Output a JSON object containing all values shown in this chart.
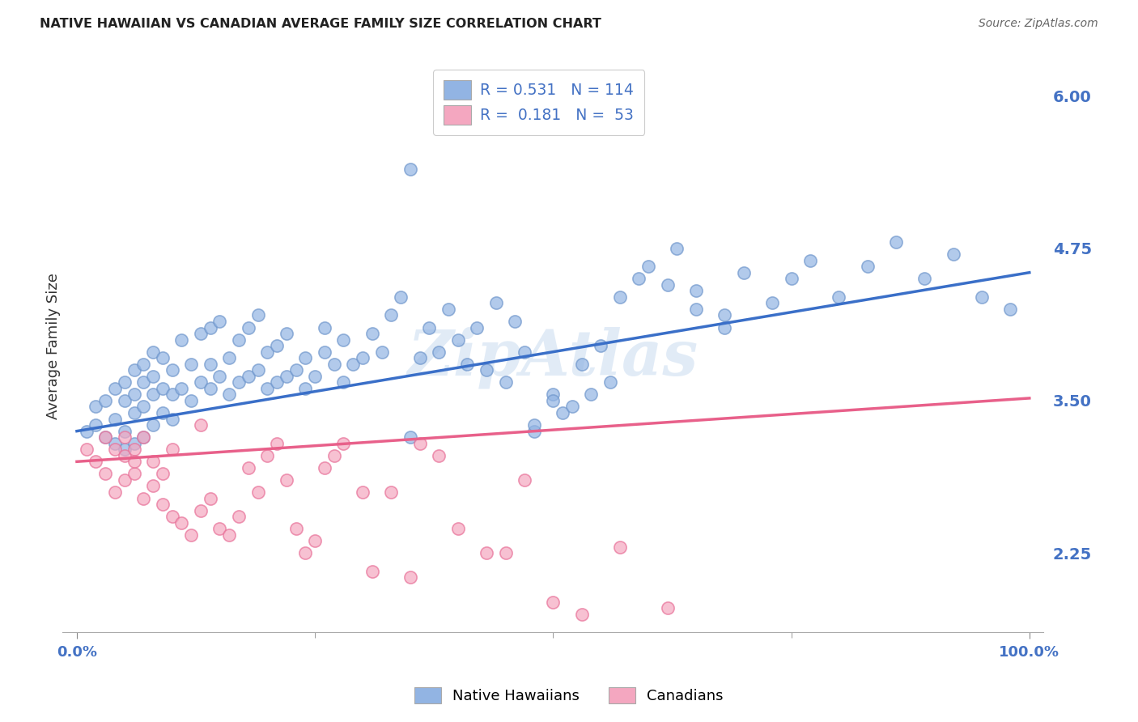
{
  "title": "NATIVE HAWAIIAN VS CANADIAN AVERAGE FAMILY SIZE CORRELATION CHART",
  "source": "Source: ZipAtlas.com",
  "ylabel": "Average Family Size",
  "xmin": 0.0,
  "xmax": 1.0,
  "ymin": 1.6,
  "ymax": 6.3,
  "yticks": [
    2.25,
    3.5,
    4.75,
    6.0
  ],
  "ytick_labels": [
    "2.25",
    "3.50",
    "4.75",
    "6.00"
  ],
  "xtick_labels": [
    "0.0%",
    "100.0%"
  ],
  "watermark": "ZipAtlas",
  "blue_color": "#92b4e3",
  "pink_color": "#f4a7c0",
  "blue_edge_color": "#7097cc",
  "pink_edge_color": "#e87098",
  "blue_line_color": "#3a6fc8",
  "pink_line_color": "#e8608a",
  "title_color": "#222222",
  "source_color": "#666666",
  "axis_tick_color": "#4472C4",
  "grid_color": "#d8d8d8",
  "legend_r_color": "#4472C4",
  "legend_n_color": "#4472C4",
  "blue_scatter_x": [
    0.01,
    0.02,
    0.02,
    0.03,
    0.03,
    0.04,
    0.04,
    0.04,
    0.05,
    0.05,
    0.05,
    0.05,
    0.06,
    0.06,
    0.06,
    0.06,
    0.07,
    0.07,
    0.07,
    0.07,
    0.08,
    0.08,
    0.08,
    0.08,
    0.09,
    0.09,
    0.09,
    0.1,
    0.1,
    0.1,
    0.11,
    0.11,
    0.12,
    0.12,
    0.13,
    0.13,
    0.14,
    0.14,
    0.14,
    0.15,
    0.15,
    0.16,
    0.16,
    0.17,
    0.17,
    0.18,
    0.18,
    0.19,
    0.19,
    0.2,
    0.2,
    0.21,
    0.21,
    0.22,
    0.22,
    0.23,
    0.24,
    0.24,
    0.25,
    0.26,
    0.26,
    0.27,
    0.28,
    0.28,
    0.29,
    0.3,
    0.31,
    0.32,
    0.33,
    0.34,
    0.35,
    0.36,
    0.37,
    0.38,
    0.39,
    0.4,
    0.41,
    0.42,
    0.43,
    0.44,
    0.45,
    0.46,
    0.47,
    0.48,
    0.5,
    0.51,
    0.53,
    0.55,
    0.57,
    0.59,
    0.62,
    0.65,
    0.68,
    0.7,
    0.73,
    0.75,
    0.77,
    0.8,
    0.83,
    0.86,
    0.89,
    0.92,
    0.95,
    0.98,
    0.35,
    0.48,
    0.5,
    0.52,
    0.54,
    0.56,
    0.6,
    0.63,
    0.65,
    0.68
  ],
  "blue_scatter_y": [
    3.25,
    3.3,
    3.45,
    3.2,
    3.5,
    3.15,
    3.35,
    3.6,
    3.1,
    3.25,
    3.5,
    3.65,
    3.15,
    3.4,
    3.55,
    3.75,
    3.2,
    3.45,
    3.65,
    3.8,
    3.3,
    3.55,
    3.7,
    3.9,
    3.4,
    3.6,
    3.85,
    3.35,
    3.55,
    3.75,
    3.6,
    4.0,
    3.5,
    3.8,
    3.65,
    4.05,
    3.6,
    3.8,
    4.1,
    3.7,
    4.15,
    3.55,
    3.85,
    3.65,
    4.0,
    3.7,
    4.1,
    3.75,
    4.2,
    3.6,
    3.9,
    3.65,
    3.95,
    3.7,
    4.05,
    3.75,
    3.6,
    3.85,
    3.7,
    3.9,
    4.1,
    3.8,
    3.65,
    4.0,
    3.8,
    3.85,
    4.05,
    3.9,
    4.2,
    4.35,
    5.4,
    3.85,
    4.1,
    3.9,
    4.25,
    4.0,
    3.8,
    4.1,
    3.75,
    4.3,
    3.65,
    4.15,
    3.9,
    3.25,
    3.55,
    3.4,
    3.8,
    3.95,
    4.35,
    4.5,
    4.45,
    4.25,
    4.1,
    4.55,
    4.3,
    4.5,
    4.65,
    4.35,
    4.6,
    4.8,
    4.5,
    4.7,
    4.35,
    4.25,
    3.2,
    3.3,
    3.5,
    3.45,
    3.55,
    3.65,
    4.6,
    4.75,
    4.4,
    4.2
  ],
  "pink_scatter_x": [
    0.01,
    0.02,
    0.03,
    0.03,
    0.04,
    0.04,
    0.05,
    0.05,
    0.05,
    0.06,
    0.06,
    0.06,
    0.07,
    0.07,
    0.08,
    0.08,
    0.09,
    0.09,
    0.1,
    0.1,
    0.11,
    0.12,
    0.13,
    0.13,
    0.14,
    0.15,
    0.16,
    0.17,
    0.18,
    0.19,
    0.2,
    0.21,
    0.22,
    0.23,
    0.24,
    0.25,
    0.26,
    0.27,
    0.28,
    0.3,
    0.31,
    0.33,
    0.35,
    0.36,
    0.38,
    0.4,
    0.43,
    0.45,
    0.47,
    0.5,
    0.53,
    0.57,
    0.62
  ],
  "pink_scatter_y": [
    3.1,
    3.0,
    3.2,
    2.9,
    3.1,
    2.75,
    3.05,
    2.85,
    3.2,
    2.9,
    3.1,
    3.0,
    2.7,
    3.2,
    2.8,
    3.0,
    2.65,
    2.9,
    2.55,
    3.1,
    2.5,
    2.4,
    2.6,
    3.3,
    2.7,
    2.45,
    2.4,
    2.55,
    2.95,
    2.75,
    3.05,
    3.15,
    2.85,
    2.45,
    2.25,
    2.35,
    2.95,
    3.05,
    3.15,
    2.75,
    2.1,
    2.75,
    2.05,
    3.15,
    3.05,
    2.45,
    2.25,
    2.25,
    2.85,
    1.85,
    1.75,
    2.3,
    1.8
  ],
  "blue_line_x": [
    0.0,
    1.0
  ],
  "blue_line_y": [
    3.25,
    4.55
  ],
  "pink_line_x": [
    0.0,
    1.0
  ],
  "pink_line_y": [
    3.0,
    3.52
  ],
  "legend_line1": "R = 0.531   N = 114",
  "legend_line2": "R =  0.181   N =  53"
}
